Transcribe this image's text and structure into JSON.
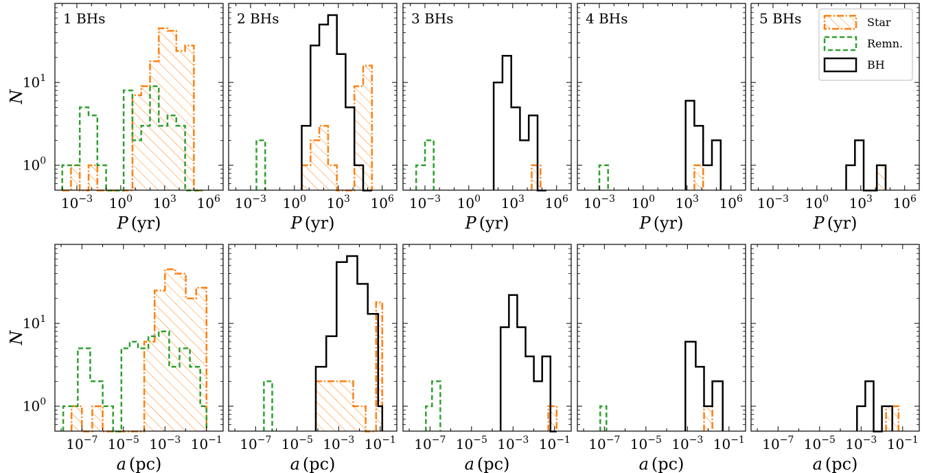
{
  "chart_data": {
    "type": "histogram",
    "y_scale": "log",
    "x_scale": "log",
    "ylabel": "N",
    "ylim": [
      0.5,
      90
    ],
    "panel_labels": [
      "1 BHs",
      "2 BHs",
      "3 BHs",
      "4 BHs",
      "5 BHs"
    ],
    "legend": {
      "placement": "top-right of 5 BHs panel",
      "entries": [
        "Star",
        "Remn.",
        "BH"
      ]
    },
    "colors": {
      "Star": "#ff7f0e",
      "Remn.": "#2ca02c",
      "BH": "#000000"
    },
    "rows": [
      {
        "xlabel_var": "P",
        "xlabel_unit": "(yr)",
        "xlim_log10": [
          -4.5,
          7.0
        ],
        "x_tick_labels": [
          "10^-3",
          "10^0",
          "10^3",
          "10^6"
        ],
        "x_tick_exponents": [
          -3,
          0,
          3,
          6
        ],
        "panels": [
          {
            "Star": {
              "edges_log10": [
                -4.0,
                -3.4,
                -2.8,
                -2.2,
                -1.6,
                -1.0,
                -0.4,
                0.2,
                0.8,
                1.4,
                2.0,
                2.6,
                3.2,
                3.8,
                4.4,
                5.0,
                5.6
              ],
              "counts": [
                0,
                1,
                0,
                1,
                0,
                0,
                0,
                0,
                7,
                9,
                18,
                45,
                42,
                24,
                28,
                0
              ]
            },
            "Remn.": {
              "edges_log10": [
                -4.0,
                -3.4,
                -2.8,
                -2.2,
                -1.6,
                -1.0,
                -0.4,
                0.2,
                0.8,
                1.4,
                2.0,
                2.6,
                3.2,
                3.8,
                4.4,
                5.0,
                5.6
              ],
              "counts": [
                1,
                1,
                5,
                4,
                1,
                0,
                0,
                8,
                2,
                3,
                9,
                3,
                4,
                3,
                0,
                0
              ]
            },
            "BH": {
              "edges_log10": [],
              "counts": []
            }
          },
          {
            "Star": {
              "edges_log10": [
                0.5,
                1.1,
                1.7,
                2.3,
                2.9,
                3.5,
                4.1,
                4.7,
                5.3
              ],
              "counts": [
                1,
                2,
                3,
                1,
                0,
                0,
                9,
                16
              ]
            },
            "Remn.": {
              "edges_log10": [
                -2.6,
                -2.0
              ],
              "counts": [
                2
              ]
            },
            "BH": {
              "edges_log10": [
                0.5,
                1.1,
                1.7,
                2.3,
                2.9,
                3.5,
                4.1,
                4.7,
                5.3
              ],
              "counts": [
                3,
                28,
                50,
                65,
                22,
                5,
                1,
                0
              ]
            }
          },
          {
            "Star": {
              "edges_log10": [
                4.3,
                4.9
              ],
              "counts": [
                1
              ]
            },
            "Remn.": {
              "edges_log10": [
                -3.6,
                -3.0,
                -2.4
              ],
              "counts": [
                1,
                2
              ]
            },
            "BH": {
              "edges_log10": [
                1.7,
                2.3,
                2.9,
                3.5,
                4.1,
                4.7,
                5.3
              ],
              "counts": [
                10,
                21,
                5,
                2,
                4,
                0
              ]
            }
          },
          {
            "Star": {
              "edges_log10": [
                3.5,
                4.1
              ],
              "counts": [
                1
              ]
            },
            "Remn.": {
              "edges_log10": [
                -3.0,
                -2.4
              ],
              "counts": [
                1
              ]
            },
            "BH": {
              "edges_log10": [
                2.9,
                3.5,
                4.1,
                4.7,
                5.3
              ],
              "counts": [
                6,
                3,
                1,
                2
              ]
            }
          },
          {
            "Star": {
              "edges_log10": [
                4.1,
                4.7
              ],
              "counts": [
                1
              ]
            },
            "Remn.": {
              "edges_log10": [],
              "counts": []
            },
            "BH": {
              "edges_log10": [
                2.0,
                2.6,
                3.2,
                4.1,
                4.7
              ],
              "counts": [
                1,
                2,
                0,
                1
              ]
            }
          }
        ]
      },
      {
        "xlabel_var": "a",
        "xlabel_unit": "(pc)",
        "xlim_log10": [
          -8.3,
          -0.2
        ],
        "x_tick_labels": [
          "10^-7",
          "10^-5",
          "10^-3",
          "10^-1"
        ],
        "x_tick_exponents": [
          -7,
          -5,
          -3,
          -1
        ],
        "panels": [
          {
            "Star": {
              "edges_log10": [
                -7.5,
                -7.0,
                -6.5,
                -6.0,
                -5.5,
                -5.0,
                -4.5,
                -4.0,
                -3.5,
                -3.0,
                -2.5,
                -2.0,
                -1.5,
                -1.0
              ],
              "counts": [
                1,
                0,
                1,
                0,
                0,
                0,
                0,
                6,
                25,
                45,
                40,
                20,
                27
              ]
            },
            "Remn.": {
              "edges_log10": [
                -7.9,
                -7.6,
                -7.2,
                -6.6,
                -6.0,
                -5.5,
                -5.1,
                -4.7,
                -4.3,
                -3.8,
                -3.3,
                -2.8,
                -2.3,
                -1.8,
                -1.3,
                -1.0
              ],
              "counts": [
                1,
                1,
                5,
                2,
                1,
                0,
                5,
                6,
                5,
                7,
                8,
                3,
                5,
                3,
                1
              ]
            },
            "BH": {
              "edges_log10": [],
              "counts": []
            }
          },
          {
            "Star": {
              "edges_log10": [
                -4.1,
                -3.5,
                -2.9,
                -2.3,
                -1.7,
                -1.2,
                -0.9
              ],
              "counts": [
                2,
                2,
                2,
                1,
                0,
                18
              ]
            },
            "Remn.": {
              "edges_log10": [
                -6.6,
                -6.2
              ],
              "counts": [
                2
              ]
            },
            "BH": {
              "edges_log10": [
                -4.1,
                -3.6,
                -3.1,
                -2.6,
                -2.1,
                -1.6,
                -1.1,
                -0.9
              ],
              "counts": [
                3,
                7,
                55,
                65,
                30,
                13,
                1
              ]
            }
          },
          {
            "Star": {
              "edges_log10": [
                -1.3,
                -0.9
              ],
              "counts": [
                1
              ]
            },
            "Remn.": {
              "edges_log10": [
                -7.2,
                -6.9,
                -6.5
              ],
              "counts": [
                1,
                2
              ]
            },
            "BH": {
              "edges_log10": [
                -3.6,
                -3.2,
                -2.8,
                -2.4,
                -2.0,
                -1.6,
                -1.2,
                -0.9
              ],
              "counts": [
                9,
                22,
                9,
                4,
                2,
                4,
                0
              ]
            }
          },
          {
            "Star": {
              "edges_log10": [
                -2.2,
                -1.8
              ],
              "counts": [
                1
              ]
            },
            "Remn.": {
              "edges_log10": [
                -7.2,
                -6.9
              ],
              "counts": [
                1
              ]
            },
            "BH": {
              "edges_log10": [
                -3.1,
                -2.6,
                -2.2,
                -1.8,
                -1.3
              ],
              "counts": [
                6,
                3,
                1,
                2
              ]
            }
          },
          {
            "Star": {
              "edges_log10": [
                -1.8,
                -1.5,
                -1.2
              ],
              "counts": [
                1,
                1
              ]
            },
            "Remn.": {
              "edges_log10": [],
              "counts": []
            },
            "BH": {
              "edges_log10": [
                -3.2,
                -2.8,
                -2.4,
                -2.0,
                -1.5
              ],
              "counts": [
                1,
                2,
                0,
                1
              ]
            }
          }
        ]
      }
    ]
  }
}
